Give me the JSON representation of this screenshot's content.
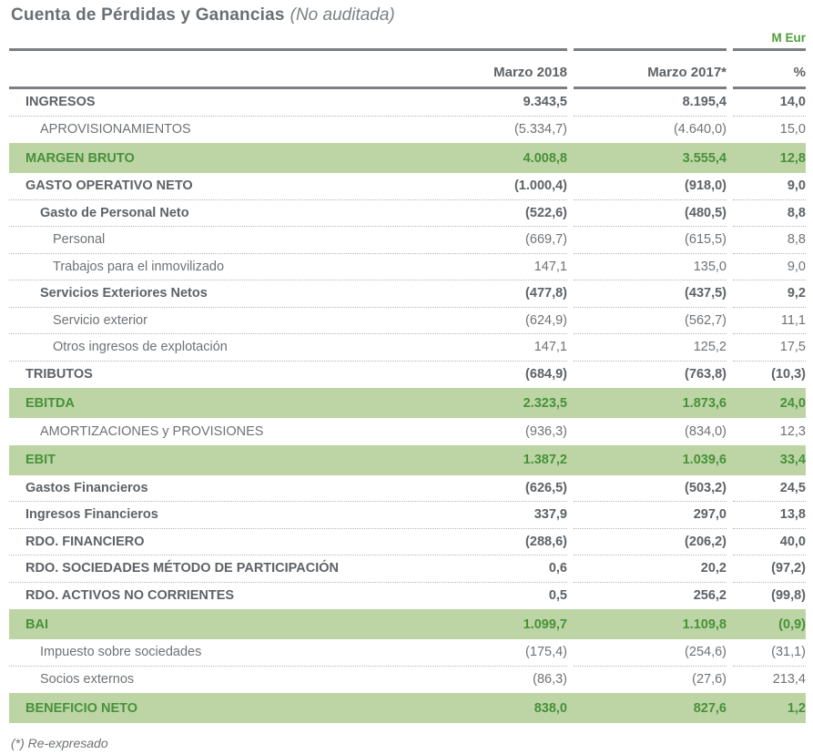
{
  "meta": {
    "title": "Cuenta de Pérdidas y Ganancias",
    "subtitle": "(No auditada)",
    "unit_label": "M Eur",
    "footnote": "(*) Re-expresado"
  },
  "table": {
    "columns": [
      "",
      "Marzo 2018",
      "Marzo 2017*",
      "%"
    ],
    "rows": [
      {
        "label": "INGRESOS",
        "v2018": "9.343,5",
        "v2017": "8.195,4",
        "pct": "14,0",
        "emphasis": "bold",
        "indent": 0,
        "ruled": true
      },
      {
        "label": "APROVISIONAMIENTOS",
        "v2018": "(5.334,7)",
        "v2017": "(4.640,0)",
        "pct": "15,0",
        "emphasis": "plain",
        "indent": 1,
        "ruled": false
      },
      {
        "label": "MARGEN BRUTO",
        "v2018": "4.008,8",
        "v2017": "3.555,4",
        "pct": "12,8",
        "emphasis": "total",
        "indent": 0,
        "ruled": false
      },
      {
        "label": "GASTO OPERATIVO NETO",
        "v2018": "(1.000,4)",
        "v2017": "(918,0)",
        "pct": "9,0",
        "emphasis": "bold",
        "indent": 0,
        "ruled": true
      },
      {
        "label": "Gasto de Personal Neto",
        "v2018": "(522,6)",
        "v2017": "(480,5)",
        "pct": "8,8",
        "emphasis": "bold",
        "indent": 1,
        "ruled": true
      },
      {
        "label": "Personal",
        "v2018": "(669,7)",
        "v2017": "(615,5)",
        "pct": "8,8",
        "emphasis": "plain",
        "indent": 2,
        "ruled": true
      },
      {
        "label": "Trabajos para el inmovilizado",
        "v2018": "147,1",
        "v2017": "135,0",
        "pct": "9,0",
        "emphasis": "plain",
        "indent": 2,
        "ruled": true
      },
      {
        "label": "Servicios Exteriores Netos",
        "v2018": "(477,8)",
        "v2017": "(437,5)",
        "pct": "9,2",
        "emphasis": "bold",
        "indent": 1,
        "ruled": true
      },
      {
        "label": "Servicio exterior",
        "v2018": "(624,9)",
        "v2017": "(562,7)",
        "pct": "11,1",
        "emphasis": "plain",
        "indent": 2,
        "ruled": true
      },
      {
        "label": "Otros ingresos de explotación",
        "v2018": "147,1",
        "v2017": "125,2",
        "pct": "17,5",
        "emphasis": "plain",
        "indent": 2,
        "ruled": true
      },
      {
        "label": "TRIBUTOS",
        "v2018": "(684,9)",
        "v2017": "(763,8)",
        "pct": "(10,3)",
        "emphasis": "bold",
        "indent": 0,
        "ruled": false
      },
      {
        "label": "EBITDA",
        "v2018": "2.323,5",
        "v2017": "1.873,6",
        "pct": "24,0",
        "emphasis": "total",
        "indent": 0,
        "ruled": false
      },
      {
        "label": "AMORTIZACIONES y PROVISIONES",
        "v2018": "(936,3)",
        "v2017": "(834,0)",
        "pct": "12,3",
        "emphasis": "plain",
        "indent": 1,
        "ruled": false
      },
      {
        "label": "EBIT",
        "v2018": "1.387,2",
        "v2017": "1.039,6",
        "pct": "33,4",
        "emphasis": "total",
        "indent": 0,
        "ruled": false
      },
      {
        "label": "Gastos Financieros",
        "v2018": "(626,5)",
        "v2017": "(503,2)",
        "pct": "24,5",
        "emphasis": "bold",
        "indent": 0,
        "ruled": true
      },
      {
        "label": "Ingresos Financieros",
        "v2018": "337,9",
        "v2017": "297,0",
        "pct": "13,8",
        "emphasis": "bold",
        "indent": 0,
        "ruled": true
      },
      {
        "label": "RDO. FINANCIERO",
        "v2018": "(288,6)",
        "v2017": "(206,2)",
        "pct": "40,0",
        "emphasis": "bold",
        "indent": 0,
        "ruled": true
      },
      {
        "label": "RDO. SOCIEDADES MÉTODO DE PARTICIPACIÓN",
        "v2018": "0,6",
        "v2017": "20,2",
        "pct": "(97,2)",
        "emphasis": "bold",
        "indent": 0,
        "ruled": true
      },
      {
        "label": "RDO. ACTIVOS NO CORRIENTES",
        "v2018": "0,5",
        "v2017": "256,2",
        "pct": "(99,8)",
        "emphasis": "bold",
        "indent": 0,
        "ruled": false
      },
      {
        "label": "BAI",
        "v2018": "1.099,7",
        "v2017": "1.109,8",
        "pct": "(0,9)",
        "emphasis": "total",
        "indent": 0,
        "ruled": false
      },
      {
        "label": "Impuesto sobre sociedades",
        "v2018": "(175,4)",
        "v2017": "(254,6)",
        "pct": "(31,1)",
        "emphasis": "plain",
        "indent": 1,
        "ruled": true
      },
      {
        "label": "Socios externos",
        "v2018": "(86,3)",
        "v2017": "(27,6)",
        "pct": "213,4",
        "emphasis": "plain",
        "indent": 1,
        "ruled": false
      },
      {
        "label": "BENEFICIO NETO",
        "v2018": "838,0",
        "v2017": "827,6",
        "pct": "1,2",
        "emphasis": "total",
        "indent": 0,
        "ruled": false
      }
    ]
  },
  "colors": {
    "accent_green": "#4f9e38",
    "highlight_row_bg": "#bdd5a4",
    "highlight_row_text": "#47913c",
    "heading_gray": "#6b6f73",
    "text_dark_gray": "#5e6266",
    "text_light_gray": "#6e7276",
    "thick_rule_gray": "#7b7e81",
    "dotted_rule_gray": "#b3b6b8"
  }
}
